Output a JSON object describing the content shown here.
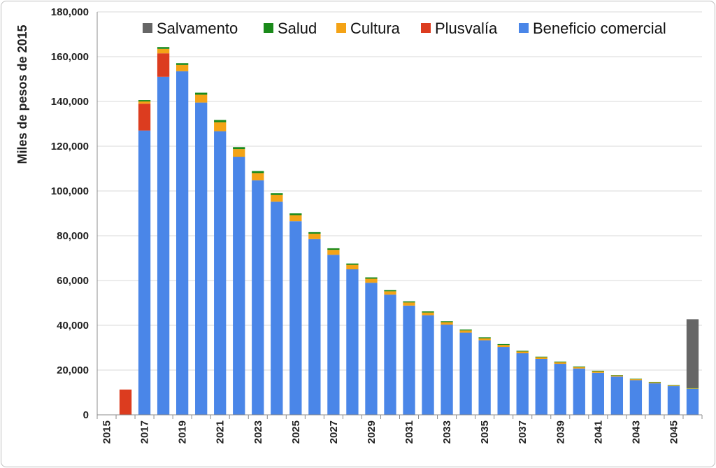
{
  "chart_data": {
    "type": "bar",
    "stacked": true,
    "ylabel": "Miles de pesos de 2015",
    "ylim": [
      0,
      180000
    ],
    "yticks": [
      "0",
      "20,000",
      "40,000",
      "60,000",
      "80,000",
      "100,000",
      "120,000",
      "140,000",
      "160,000",
      "180,000"
    ],
    "grid": true,
    "legend_position": "top-right",
    "categories": [
      2015,
      2016,
      2017,
      2018,
      2019,
      2020,
      2021,
      2022,
      2023,
      2024,
      2025,
      2026,
      2027,
      2028,
      2029,
      2030,
      2031,
      2032,
      2033,
      2034,
      2035,
      2036,
      2037,
      2038,
      2039,
      2040,
      2041,
      2042,
      2043,
      2044,
      2045,
      2046
    ],
    "xtick_labels": [
      "2015",
      "",
      "2017",
      "",
      "2019",
      "",
      "2021",
      "",
      "2023",
      "",
      "2025",
      "",
      "2027",
      "",
      "2029",
      "",
      "2031",
      "",
      "2033",
      "",
      "2035",
      "",
      "2037",
      "",
      "2039",
      "",
      "2041",
      "",
      "2043",
      "",
      "2045",
      ""
    ],
    "legend": [
      "Salvamento",
      "Salud",
      "Cultura",
      "Plusvalía",
      "Beneficio comercial"
    ],
    "series": [
      {
        "name": "Beneficio comercial",
        "color": "#4a86e8",
        "values": [
          0,
          0,
          127000,
          151000,
          153500,
          139500,
          126700,
          115300,
          104800,
          95200,
          86500,
          78500,
          71500,
          65000,
          59000,
          53700,
          48800,
          44500,
          40300,
          36700,
          33300,
          30300,
          27500,
          25000,
          22800,
          20700,
          18800,
          17100,
          15500,
          14100,
          12800,
          11600
        ]
      },
      {
        "name": "Plusvalía",
        "color": "#dc3c1f",
        "values": [
          0,
          11300,
          12000,
          10500,
          0,
          0,
          0,
          0,
          0,
          0,
          0,
          0,
          0,
          0,
          0,
          0,
          0,
          0,
          0,
          0,
          0,
          0,
          0,
          0,
          0,
          0,
          0,
          0,
          0,
          0,
          0,
          0
        ]
      },
      {
        "name": "Cultura",
        "color": "#f4a316",
        "values": [
          0,
          0,
          1000,
          2000,
          2800,
          3500,
          4000,
          3400,
          3200,
          3000,
          2700,
          2400,
          2200,
          2000,
          1800,
          1500,
          1400,
          1200,
          1100,
          1000,
          900,
          900,
          800,
          700,
          700,
          600,
          600,
          500,
          400,
          400,
          300,
          200
        ]
      },
      {
        "name": "Salud",
        "color": "#1a8a1a",
        "values": [
          0,
          0,
          600,
          800,
          800,
          900,
          1000,
          900,
          900,
          800,
          800,
          700,
          700,
          600,
          600,
          500,
          500,
          500,
          400,
          400,
          400,
          400,
          300,
          300,
          300,
          300,
          300,
          200,
          200,
          200,
          200,
          200
        ]
      },
      {
        "name": "Salvamento",
        "color": "#666666",
        "values": [
          0,
          0,
          0,
          0,
          0,
          0,
          0,
          0,
          0,
          0,
          0,
          0,
          0,
          0,
          0,
          0,
          0,
          0,
          0,
          0,
          0,
          0,
          0,
          0,
          0,
          0,
          0,
          0,
          0,
          0,
          0,
          30700
        ]
      }
    ]
  }
}
